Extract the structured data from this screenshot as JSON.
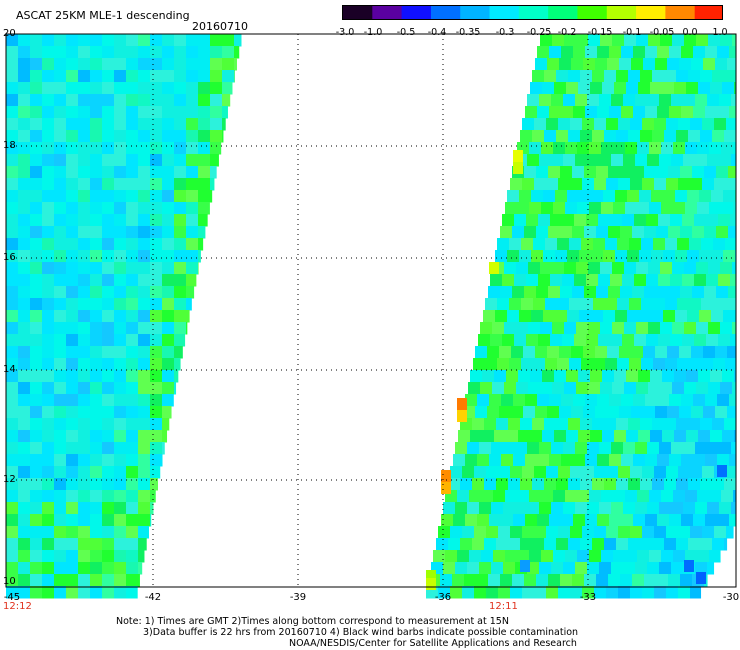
{
  "header": {
    "title": "ASCAT 25KM MLE-1 descending",
    "date": "20160710"
  },
  "colorbar": {
    "labels": [
      "-3.0",
      "-1.0",
      "-0.5",
      "-0.4",
      "-0.35",
      "-0.3",
      "-0.25",
      "-0.2",
      "-0.15",
      "-0.1",
      "-0.05",
      "0.0",
      "1.0"
    ],
    "colors": [
      "#1a0026",
      "#5a00a0",
      "#1010ff",
      "#0070ff",
      "#00b4ff",
      "#00eaff",
      "#00ffc8",
      "#00ff7a",
      "#40ff00",
      "#b4ff00",
      "#ffee00",
      "#ff8800",
      "#ff2200"
    ]
  },
  "axes": {
    "x_ticks": [
      "-45",
      "-42",
      "-39",
      "-36",
      "-33",
      "-30"
    ],
    "y_ticks": [
      "20",
      "18",
      "16",
      "14",
      "12",
      "10"
    ]
  },
  "time_labels": [
    "12:12",
    "12:11"
  ],
  "notes": [
    "Note: 1) Times are GMT 2)Times along bottom correspond to measurement at 15N",
    "3)Data buffer is 22 hrs from 20160710 4) Black wind barbs indicate possible contamination",
    "NOAA/NESDIS/Center for Satellite Applications and Research"
  ]
}
